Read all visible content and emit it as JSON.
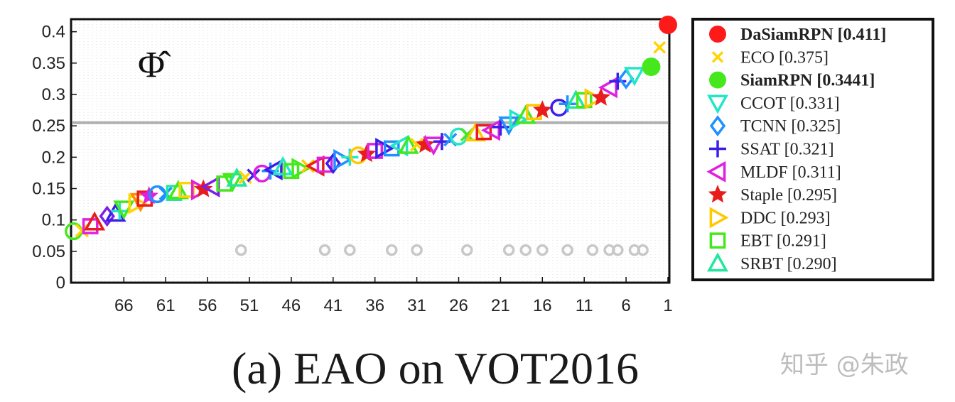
{
  "chart_data": {
    "type": "scatter",
    "symbol": "Φ̂",
    "ylim": [
      0,
      0.42
    ],
    "yticks": [
      0,
      0.05,
      0.1,
      0.15,
      0.2,
      0.25,
      0.3,
      0.35,
      0.4
    ],
    "ytick_labels": [
      "0",
      "0.05",
      "0.1",
      "0.15",
      "0.2",
      "0.25",
      "0.3",
      "0.35",
      "0.4"
    ],
    "xrange": [
      71,
      0
    ],
    "xticks": [
      66,
      61,
      56,
      51,
      46,
      41,
      36,
      31,
      26,
      21,
      16,
      11,
      6,
      1
    ],
    "xtick_labels": [
      "66",
      "61",
      "56",
      "51",
      "46",
      "41",
      "36",
      "31",
      "26",
      "21",
      "16",
      "11",
      "6",
      "1"
    ],
    "threshold": 0.255,
    "caption": "(a) EAO on VOT2016",
    "watermark": "知乎 @朱政",
    "legend": [
      {
        "label": "DaSiamRPN [0.411]",
        "bold": true,
        "marker": "filled-circle",
        "color": "#ff1a1a"
      },
      {
        "label": "ECO [0.375]",
        "bold": false,
        "marker": "x",
        "color": "#ffd400"
      },
      {
        "label": "SiamRPN [0.3441]",
        "bold": true,
        "marker": "filled-circle",
        "color": "#44e81c"
      },
      {
        "label": "CCOT [0.331]",
        "bold": false,
        "marker": "triangle-down",
        "color": "#22e6c8"
      },
      {
        "label": "TCNN [0.325]",
        "bold": false,
        "marker": "diamond",
        "color": "#1e90ff"
      },
      {
        "label": "SSAT [0.321]",
        "bold": false,
        "marker": "plus",
        "color": "#3b1ee8"
      },
      {
        "label": "MLDF [0.311]",
        "bold": false,
        "marker": "triangle-left",
        "color": "#e020e0"
      },
      {
        "label": "Staple [0.295]",
        "bold": false,
        "marker": "star",
        "color": "#e81c1c"
      },
      {
        "label": "DDC [0.293]",
        "bold": false,
        "marker": "triangle-right",
        "color": "#ffc800"
      },
      {
        "label": "EBT [0.291]",
        "bold": false,
        "marker": "square",
        "color": "#44e81c"
      },
      {
        "label": "SRBT [0.290]",
        "bold": false,
        "marker": "triangle-up",
        "color": "#22e6a0"
      }
    ],
    "named_points": [
      {
        "rank": 0.0,
        "value": 0.411,
        "marker": "filled-circle",
        "color": "#ff1a1a"
      },
      {
        "rank": 1.0,
        "value": 0.375,
        "marker": "x",
        "color": "#ffd400"
      },
      {
        "rank": 2.0,
        "value": 0.3441,
        "marker": "filled-circle",
        "color": "#44e81c"
      }
    ],
    "series": [
      {
        "rank": 71.0,
        "value": 0.082,
        "marker": "circle",
        "color": "#44e81c"
      },
      {
        "rank": 70.0,
        "value": 0.083,
        "marker": "x",
        "color": "#ffd400"
      },
      {
        "rank": 69.0,
        "value": 0.09,
        "marker": "square",
        "color": "#e020e0"
      },
      {
        "rank": 68.5,
        "value": 0.096,
        "marker": "triangle-up",
        "color": "#e81c1c"
      },
      {
        "rank": 67.0,
        "value": 0.106,
        "marker": "diamond",
        "color": "#7a1ee8"
      },
      {
        "rank": 66.0,
        "value": 0.11,
        "marker": "triangle-up",
        "color": "#3b1ee8"
      },
      {
        "rank": 65.5,
        "value": 0.114,
        "marker": "plus",
        "color": "#22e6c8"
      },
      {
        "rank": 65.0,
        "value": 0.118,
        "marker": "triangle-down",
        "color": "#44e81c"
      },
      {
        "rank": 63.5,
        "value": 0.126,
        "marker": "triangle-right",
        "color": "#ffd400"
      },
      {
        "rank": 63.0,
        "value": 0.13,
        "marker": "triangle-down",
        "color": "#ff8c00"
      },
      {
        "rank": 62.5,
        "value": 0.134,
        "marker": "square",
        "color": "#e81c1c"
      },
      {
        "rank": 62.0,
        "value": 0.138,
        "marker": "star",
        "color": "#e020e0"
      },
      {
        "rank": 61.0,
        "value": 0.141,
        "marker": "circle",
        "color": "#1e90ff"
      },
      {
        "rank": 60.0,
        "value": 0.142,
        "marker": "x",
        "color": "#1e90ff"
      },
      {
        "rank": 59.0,
        "value": 0.143,
        "marker": "square",
        "color": "#22e6a0"
      },
      {
        "rank": 58.5,
        "value": 0.146,
        "marker": "triangle-up",
        "color": "#44e81c"
      },
      {
        "rank": 57.5,
        "value": 0.148,
        "marker": "square",
        "color": "#ffd400"
      },
      {
        "rank": 56.0,
        "value": 0.148,
        "marker": "triangle-right",
        "color": "#e020e0"
      },
      {
        "rank": 55.5,
        "value": 0.149,
        "marker": "star",
        "color": "#e81c1c"
      },
      {
        "rank": 54.5,
        "value": 0.153,
        "marker": "triangle-left",
        "color": "#7a1ee8"
      },
      {
        "rank": 53.0,
        "value": 0.158,
        "marker": "square",
        "color": "#44e81c"
      },
      {
        "rank": 52.0,
        "value": 0.162,
        "marker": "triangle-down",
        "color": "#44e81c"
      },
      {
        "rank": 51.5,
        "value": 0.166,
        "marker": "triangle-up",
        "color": "#22e6a0"
      },
      {
        "rank": 50.5,
        "value": 0.168,
        "marker": "x",
        "color": "#ffd400"
      },
      {
        "rank": 49.5,
        "value": 0.171,
        "marker": "x",
        "color": "#3b1ee8"
      },
      {
        "rank": 48.5,
        "value": 0.174,
        "marker": "circle",
        "color": "#e020e0"
      },
      {
        "rank": 47.5,
        "value": 0.178,
        "marker": "plus",
        "color": "#1e90ff"
      },
      {
        "rank": 47.0,
        "value": 0.18,
        "marker": "triangle-left",
        "color": "#3b1ee8"
      },
      {
        "rank": 46.0,
        "value": 0.184,
        "marker": "triangle-up",
        "color": "#22e6c8"
      },
      {
        "rank": 45.0,
        "value": 0.178,
        "marker": "square",
        "color": "#44e81c"
      },
      {
        "rank": 44.0,
        "value": 0.182,
        "marker": "triangle-right",
        "color": "#44e81c"
      },
      {
        "rank": 43.0,
        "value": 0.186,
        "marker": "x",
        "color": "#ffc800"
      },
      {
        "rank": 42.0,
        "value": 0.186,
        "marker": "triangle-left",
        "color": "#e81c1c"
      },
      {
        "rank": 41.0,
        "value": 0.188,
        "marker": "square",
        "color": "#e020e0"
      },
      {
        "rank": 40.0,
        "value": 0.19,
        "marker": "diamond",
        "color": "#3b1ee8"
      },
      {
        "rank": 39.0,
        "value": 0.196,
        "marker": "triangle-right",
        "color": "#1e90ff"
      },
      {
        "rank": 38.0,
        "value": 0.2,
        "marker": "plus",
        "color": "#22e6c8"
      },
      {
        "rank": 37.0,
        "value": 0.203,
        "marker": "circle",
        "color": "#ffc800"
      },
      {
        "rank": 36.0,
        "value": 0.205,
        "marker": "star",
        "color": "#e81c1c"
      },
      {
        "rank": 35.0,
        "value": 0.21,
        "marker": "square",
        "color": "#e020e0"
      },
      {
        "rank": 34.0,
        "value": 0.214,
        "marker": "triangle-right",
        "color": "#3b1ee8"
      },
      {
        "rank": 33.0,
        "value": 0.214,
        "marker": "square",
        "color": "#1e90ff"
      },
      {
        "rank": 32.0,
        "value": 0.218,
        "marker": "triangle-left",
        "color": "#22e6c8"
      },
      {
        "rank": 31.0,
        "value": 0.218,
        "marker": "triangle-up",
        "color": "#44e81c"
      },
      {
        "rank": 30.0,
        "value": 0.22,
        "marker": "x",
        "color": "#ffd400"
      },
      {
        "rank": 29.0,
        "value": 0.22,
        "marker": "star",
        "color": "#e81c1c"
      },
      {
        "rank": 28.0,
        "value": 0.22,
        "marker": "triangle-down",
        "color": "#e020e0"
      },
      {
        "rank": 27.0,
        "value": 0.225,
        "marker": "plus",
        "color": "#3b1ee8"
      },
      {
        "rank": 26.0,
        "value": 0.228,
        "marker": "x",
        "color": "#1e90ff"
      },
      {
        "rank": 25.0,
        "value": 0.233,
        "marker": "circle",
        "color": "#22e6c8"
      },
      {
        "rank": 24.0,
        "value": 0.236,
        "marker": "x",
        "color": "#44e81c"
      },
      {
        "rank": 23.0,
        "value": 0.238,
        "marker": "triangle-up",
        "color": "#ffc800"
      },
      {
        "rank": 22.0,
        "value": 0.24,
        "marker": "square",
        "color": "#e81c1c"
      },
      {
        "rank": 21.0,
        "value": 0.243,
        "marker": "triangle-left",
        "color": "#e020e0"
      },
      {
        "rank": 20.0,
        "value": 0.248,
        "marker": "plus",
        "color": "#3b1ee8"
      },
      {
        "rank": 19.0,
        "value": 0.252,
        "marker": "triangle-down",
        "color": "#1e90ff"
      },
      {
        "rank": 18.0,
        "value": 0.26,
        "marker": "triangle-right",
        "color": "#22e6c8"
      },
      {
        "rank": 17.0,
        "value": 0.266,
        "marker": "triangle-up",
        "color": "#44e81c"
      },
      {
        "rank": 16.0,
        "value": 0.272,
        "marker": "square",
        "color": "#ffc800"
      },
      {
        "rank": 15.0,
        "value": 0.275,
        "marker": "star",
        "color": "#e81c1c"
      },
      {
        "rank": 13.0,
        "value": 0.279,
        "marker": "circle",
        "color": "#3b1ee8"
      },
      {
        "rank": 12.0,
        "value": 0.285,
        "marker": "plus",
        "color": "#1e90ff"
      },
      {
        "rank": 11.0,
        "value": 0.29,
        "marker": "triangle-up",
        "color": "#22e6a0"
      },
      {
        "rank": 10.0,
        "value": 0.291,
        "marker": "square",
        "color": "#44e81c"
      },
      {
        "rank": 9.0,
        "value": 0.293,
        "marker": "triangle-right",
        "color": "#ffc800"
      },
      {
        "rank": 8.0,
        "value": 0.295,
        "marker": "star",
        "color": "#e81c1c"
      },
      {
        "rank": 7.0,
        "value": 0.311,
        "marker": "triangle-left",
        "color": "#e020e0"
      },
      {
        "rank": 6.0,
        "value": 0.321,
        "marker": "plus",
        "color": "#3b1ee8"
      },
      {
        "rank": 5.0,
        "value": 0.325,
        "marker": "diamond",
        "color": "#1e90ff"
      },
      {
        "rank": 4.0,
        "value": 0.331,
        "marker": "triangle-down",
        "color": "#22e6c8"
      }
    ],
    "baseline_markers": [
      51,
      41,
      38,
      33,
      30,
      24,
      19,
      17,
      15,
      12,
      9,
      7,
      6,
      4,
      3
    ]
  }
}
